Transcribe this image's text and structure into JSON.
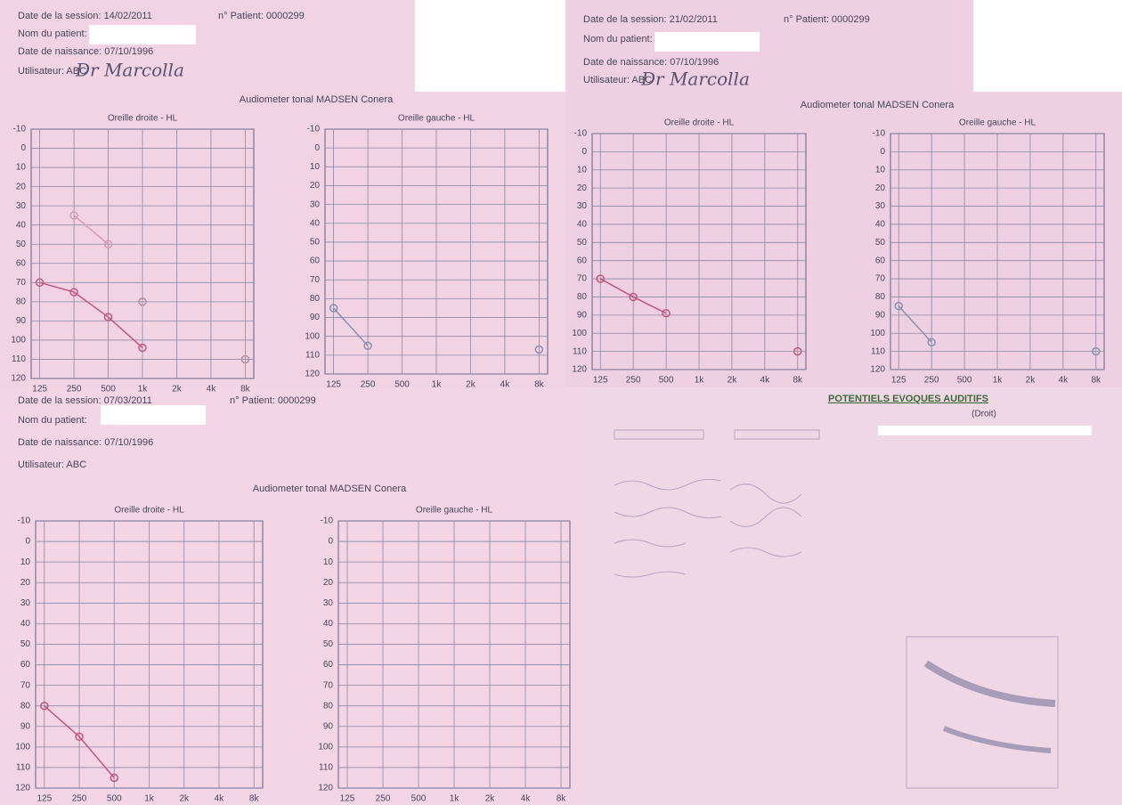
{
  "sessions": [
    {
      "date": "Date de la session: 14/02/2011",
      "patient_no": "n° Patient: 0000299",
      "name_label": "Nom du patient:",
      "birth": "Date de naissance: 07/10/1996",
      "user": "Utilisateur: ABC",
      "signature": "Dr Marcolla",
      "device": "Audiometer tonal MADSEN Conera",
      "charts": [
        {
          "type": "line",
          "title": "Oreille droite - HL",
          "categories": [
            "125",
            "250",
            "500",
            "1k",
            "2k",
            "4k",
            "8k"
          ],
          "ylim": [
            -10,
            120
          ],
          "y_inverted": true,
          "yticks": [
            -10,
            0,
            10,
            20,
            30,
            40,
            50,
            60,
            70,
            80,
            90,
            100,
            110,
            120
          ],
          "series": [
            {
              "color": "#c4557a",
              "values": [
                70,
                75,
                88,
                104,
                null,
                null,
                null
              ]
            },
            {
              "color": "#d79ab4",
              "values": [
                null,
                35,
                50,
                null,
                null,
                null,
                null
              ]
            },
            {
              "color": "#b78aa0",
              "values": [
                null,
                null,
                null,
                80,
                null,
                null,
                110
              ]
            }
          ]
        },
        {
          "type": "line",
          "title": "Oreille gauche - HL",
          "categories": [
            "125",
            "250",
            "500",
            "1k",
            "2k",
            "4k",
            "8k"
          ],
          "ylim": [
            -10,
            120
          ],
          "y_inverted": true,
          "yticks": [
            -10,
            0,
            10,
            20,
            30,
            40,
            50,
            60,
            70,
            80,
            90,
            100,
            110,
            120
          ],
          "series": [
            {
              "color": "#8a8fb0",
              "values": [
                85,
                105,
                null,
                null,
                null,
                null,
                107
              ]
            }
          ]
        }
      ]
    },
    {
      "date": "Date de la session: 21/02/2011",
      "patient_no": "n° Patient: 0000299",
      "name_label": "Nom du patient:",
      "birth": "Date de naissance: 07/10/1996",
      "user": "Utilisateur: ABC",
      "signature": "Dr Marcolla",
      "device": "Audiometer tonal MADSEN Conera",
      "charts": [
        {
          "type": "line",
          "title": "Oreille droite - HL",
          "categories": [
            "125",
            "250",
            "500",
            "1k",
            "2k",
            "4k",
            "8k"
          ],
          "ylim": [
            -10,
            120
          ],
          "y_inverted": true,
          "yticks": [
            -10,
            0,
            10,
            20,
            30,
            40,
            50,
            60,
            70,
            80,
            90,
            100,
            110,
            120
          ],
          "series": [
            {
              "color": "#c4557a",
              "values": [
                70,
                80,
                89,
                null,
                null,
                null,
                110
              ]
            }
          ]
        },
        {
          "type": "line",
          "title": "Oreille gauche - HL",
          "categories": [
            "125",
            "250",
            "500",
            "1k",
            "2k",
            "4k",
            "8k"
          ],
          "ylim": [
            -10,
            120
          ],
          "y_inverted": true,
          "yticks": [
            -10,
            0,
            10,
            20,
            30,
            40,
            50,
            60,
            70,
            80,
            90,
            100,
            110,
            120
          ],
          "series": [
            {
              "color": "#8a8fb0",
              "values": [
                85,
                105,
                null,
                null,
                null,
                null,
                110
              ]
            }
          ]
        }
      ]
    },
    {
      "date": "Date de la session: 07/03/2011",
      "patient_no": "n° Patient: 0000299",
      "name_label": "Nom du patient:",
      "birth": "Date de naissance: 07/10/1996",
      "user": "Utilisateur: ABC",
      "device": "Audiometer tonal MADSEN Conera",
      "charts": [
        {
          "type": "line",
          "title": "Oreille droite - HL",
          "categories": [
            "125",
            "250",
            "500",
            "1k",
            "2k",
            "4k",
            "8k"
          ],
          "ylim": [
            -10,
            120
          ],
          "y_inverted": true,
          "yticks": [
            -10,
            0,
            10,
            20,
            30,
            40,
            50,
            60,
            70,
            80,
            90,
            100,
            110,
            120
          ],
          "series": [
            {
              "color": "#c4557a",
              "values": [
                80,
                95,
                115,
                null,
                null,
                null,
                null
              ]
            }
          ]
        },
        {
          "type": "line",
          "title": "Oreille gauche - HL",
          "categories": [
            "125",
            "250",
            "500",
            "1k",
            "2k",
            "4k",
            "8k"
          ],
          "ylim": [
            -10,
            120
          ],
          "y_inverted": true,
          "yticks": [
            -10,
            0,
            10,
            20,
            30,
            40,
            50,
            60,
            70,
            80,
            90,
            100,
            110,
            120
          ],
          "series": []
        }
      ]
    }
  ],
  "pea": {
    "title": "POTENTIELS EVOQUES AUDITIFS",
    "subtitle": "(Droit)"
  }
}
